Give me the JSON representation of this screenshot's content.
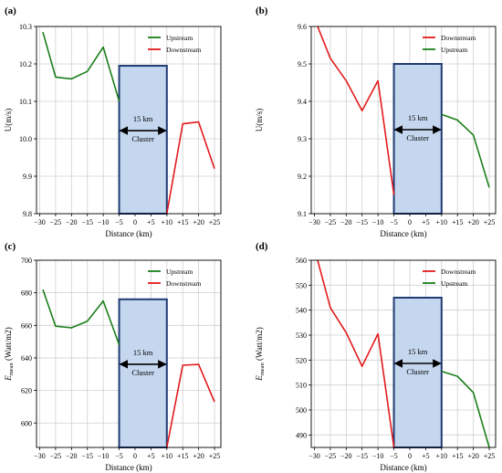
{
  "chart_data": [
    {
      "panel_label": "(a)",
      "type": "line",
      "ylabel": "U(m/s)",
      "xlabel": "Distance (km)",
      "xticks": [
        "−30",
        "−25",
        "−20",
        "−15",
        "−10",
        "−5",
        "0",
        "+5",
        "+10",
        "+15",
        "+20",
        "+25"
      ],
      "yticks": [
        "9.8",
        "9.9",
        "10.0",
        "10.1",
        "10.2",
        "10.3"
      ],
      "xlim": [
        -31,
        27
      ],
      "ylim": [
        9.8,
        10.3
      ],
      "grid": true,
      "legend_position": "top-right",
      "series": [
        {
          "name": "Upstream",
          "color": "#1a7f1a",
          "x": [
            -29,
            -25,
            -20,
            -15,
            -10,
            -5
          ],
          "y": [
            10.285,
            10.165,
            10.16,
            10.18,
            10.245,
            10.1
          ]
        },
        {
          "name": "Downstream",
          "color": "#e31a1c",
          "x": [
            10,
            15,
            20,
            25
          ],
          "y": [
            9.8,
            10.04,
            10.045,
            9.92
          ]
        }
      ],
      "cluster": {
        "x0": -5,
        "x1": 10,
        "y_top": 10.195,
        "width_label": "15 km",
        "label": "Cluster"
      }
    },
    {
      "panel_label": "(b)",
      "type": "line",
      "ylabel": "U(m/s)",
      "xlabel": "Distance (km)",
      "xticks": [
        "−30",
        "−25",
        "−20",
        "−15",
        "−10",
        "−5",
        "0",
        "+5",
        "+10",
        "+15",
        "+20",
        "+25"
      ],
      "yticks": [
        "9.1",
        "9.2",
        "9.3",
        "9.4",
        "9.5",
        "9.6"
      ],
      "xlim": [
        -31,
        27
      ],
      "ylim": [
        9.1,
        9.6
      ],
      "grid": true,
      "legend_position": "top-right",
      "series": [
        {
          "name": "Downstream",
          "color": "#e31a1c",
          "x": [
            -29,
            -25,
            -20,
            -15,
            -10,
            -5
          ],
          "y": [
            9.6,
            9.515,
            9.455,
            9.375,
            9.455,
            9.15
          ]
        },
        {
          "name": "Upstream",
          "color": "#1a7f1a",
          "x": [
            10,
            15,
            20,
            25
          ],
          "y": [
            9.365,
            9.35,
            9.31,
            9.17
          ]
        }
      ],
      "cluster": {
        "x0": -5,
        "x1": 10,
        "y_top": 9.5,
        "width_label": "15 km",
        "label": "Cluster"
      }
    },
    {
      "panel_label": "(c)",
      "type": "line",
      "ylabel": "E_mean (Watt/m2)",
      "xlabel": "Distance (km)",
      "xticks": [
        "−30",
        "−25",
        "−20",
        "−15",
        "−10",
        "−5",
        "0",
        "+5",
        "+10",
        "+15",
        "+20",
        "+25"
      ],
      "yticks": [
        "600",
        "620",
        "640",
        "660",
        "680",
        "700"
      ],
      "xlim": [
        -31,
        27
      ],
      "ylim": [
        585,
        700
      ],
      "grid": true,
      "legend_position": "top-right",
      "series": [
        {
          "name": "Upstream",
          "color": "#1a7f1a",
          "x": [
            -29,
            -25,
            -20,
            -15,
            -10,
            -5
          ],
          "y": [
            682,
            659.5,
            658.5,
            662.5,
            675,
            648
          ]
        },
        {
          "name": "Downstream",
          "color": "#e31a1c",
          "x": [
            10,
            15,
            20,
            25
          ],
          "y": [
            585,
            635.5,
            636,
            613
          ]
        }
      ],
      "cluster": {
        "x0": -5,
        "x1": 10,
        "y_top": 676,
        "width_label": "15 km",
        "label": "Cluster"
      }
    },
    {
      "panel_label": "(d)",
      "type": "line",
      "ylabel": "E_mean (Watt/m2)",
      "xlabel": "Distance (km)",
      "xticks": [
        "−30",
        "−25",
        "−20",
        "−15",
        "−10",
        "−5",
        "0",
        "+5",
        "+10",
        "+15",
        "+20",
        "+25"
      ],
      "yticks": [
        "490",
        "500",
        "510",
        "520",
        "530",
        "540",
        "550",
        "560"
      ],
      "xlim": [
        -31,
        27
      ],
      "ylim": [
        485,
        560
      ],
      "grid": true,
      "legend_position": "top-right",
      "series": [
        {
          "name": "Downstream",
          "color": "#e31a1c",
          "x": [
            -29,
            -25,
            -20,
            -15,
            -10,
            -5
          ],
          "y": [
            560,
            541,
            531,
            517.5,
            530.5,
            485
          ]
        },
        {
          "name": "Upstream",
          "color": "#1a7f1a",
          "x": [
            10,
            15,
            20,
            25
          ],
          "y": [
            515.5,
            513.5,
            507,
            485
          ]
        }
      ],
      "cluster": {
        "x0": -5,
        "x1": 10,
        "y_top": 545,
        "width_label": "15 km",
        "label": "Cluster"
      }
    }
  ]
}
